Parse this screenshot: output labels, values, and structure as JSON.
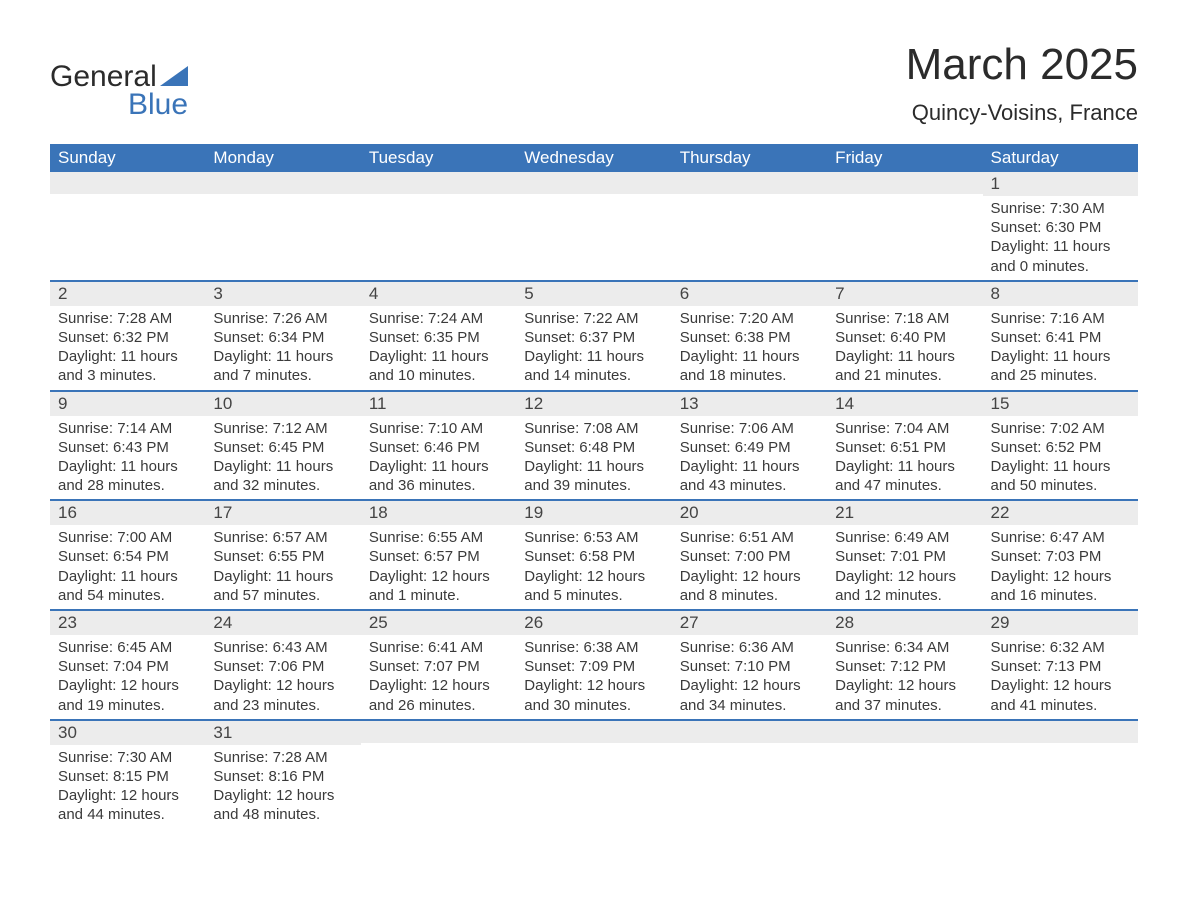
{
  "brand": {
    "first": "General",
    "second": "Blue",
    "second_color": "#3a74b8"
  },
  "title": "March 2025",
  "subtitle": "Quincy-Voisins, France",
  "colors": {
    "header_bg": "#3a74b8",
    "header_text": "#ffffff",
    "row_stripe": "#ececec",
    "page_bg": "#ffffff",
    "text": "#3a3a3a",
    "border": "#3a74b8"
  },
  "day_headers": [
    "Sunday",
    "Monday",
    "Tuesday",
    "Wednesday",
    "Thursday",
    "Friday",
    "Saturday"
  ],
  "weeks": [
    [
      {},
      {},
      {},
      {},
      {},
      {},
      {
        "n": "1",
        "sunrise": "Sunrise: 7:30 AM",
        "sunset": "Sunset: 6:30 PM",
        "d1": "Daylight: 11 hours",
        "d2": "and 0 minutes."
      }
    ],
    [
      {
        "n": "2",
        "sunrise": "Sunrise: 7:28 AM",
        "sunset": "Sunset: 6:32 PM",
        "d1": "Daylight: 11 hours",
        "d2": "and 3 minutes."
      },
      {
        "n": "3",
        "sunrise": "Sunrise: 7:26 AM",
        "sunset": "Sunset: 6:34 PM",
        "d1": "Daylight: 11 hours",
        "d2": "and 7 minutes."
      },
      {
        "n": "4",
        "sunrise": "Sunrise: 7:24 AM",
        "sunset": "Sunset: 6:35 PM",
        "d1": "Daylight: 11 hours",
        "d2": "and 10 minutes."
      },
      {
        "n": "5",
        "sunrise": "Sunrise: 7:22 AM",
        "sunset": "Sunset: 6:37 PM",
        "d1": "Daylight: 11 hours",
        "d2": "and 14 minutes."
      },
      {
        "n": "6",
        "sunrise": "Sunrise: 7:20 AM",
        "sunset": "Sunset: 6:38 PM",
        "d1": "Daylight: 11 hours",
        "d2": "and 18 minutes."
      },
      {
        "n": "7",
        "sunrise": "Sunrise: 7:18 AM",
        "sunset": "Sunset: 6:40 PM",
        "d1": "Daylight: 11 hours",
        "d2": "and 21 minutes."
      },
      {
        "n": "8",
        "sunrise": "Sunrise: 7:16 AM",
        "sunset": "Sunset: 6:41 PM",
        "d1": "Daylight: 11 hours",
        "d2": "and 25 minutes."
      }
    ],
    [
      {
        "n": "9",
        "sunrise": "Sunrise: 7:14 AM",
        "sunset": "Sunset: 6:43 PM",
        "d1": "Daylight: 11 hours",
        "d2": "and 28 minutes."
      },
      {
        "n": "10",
        "sunrise": "Sunrise: 7:12 AM",
        "sunset": "Sunset: 6:45 PM",
        "d1": "Daylight: 11 hours",
        "d2": "and 32 minutes."
      },
      {
        "n": "11",
        "sunrise": "Sunrise: 7:10 AM",
        "sunset": "Sunset: 6:46 PM",
        "d1": "Daylight: 11 hours",
        "d2": "and 36 minutes."
      },
      {
        "n": "12",
        "sunrise": "Sunrise: 7:08 AM",
        "sunset": "Sunset: 6:48 PM",
        "d1": "Daylight: 11 hours",
        "d2": "and 39 minutes."
      },
      {
        "n": "13",
        "sunrise": "Sunrise: 7:06 AM",
        "sunset": "Sunset: 6:49 PM",
        "d1": "Daylight: 11 hours",
        "d2": "and 43 minutes."
      },
      {
        "n": "14",
        "sunrise": "Sunrise: 7:04 AM",
        "sunset": "Sunset: 6:51 PM",
        "d1": "Daylight: 11 hours",
        "d2": "and 47 minutes."
      },
      {
        "n": "15",
        "sunrise": "Sunrise: 7:02 AM",
        "sunset": "Sunset: 6:52 PM",
        "d1": "Daylight: 11 hours",
        "d2": "and 50 minutes."
      }
    ],
    [
      {
        "n": "16",
        "sunrise": "Sunrise: 7:00 AM",
        "sunset": "Sunset: 6:54 PM",
        "d1": "Daylight: 11 hours",
        "d2": "and 54 minutes."
      },
      {
        "n": "17",
        "sunrise": "Sunrise: 6:57 AM",
        "sunset": "Sunset: 6:55 PM",
        "d1": "Daylight: 11 hours",
        "d2": "and 57 minutes."
      },
      {
        "n": "18",
        "sunrise": "Sunrise: 6:55 AM",
        "sunset": "Sunset: 6:57 PM",
        "d1": "Daylight: 12 hours",
        "d2": "and 1 minute."
      },
      {
        "n": "19",
        "sunrise": "Sunrise: 6:53 AM",
        "sunset": "Sunset: 6:58 PM",
        "d1": "Daylight: 12 hours",
        "d2": "and 5 minutes."
      },
      {
        "n": "20",
        "sunrise": "Sunrise: 6:51 AM",
        "sunset": "Sunset: 7:00 PM",
        "d1": "Daylight: 12 hours",
        "d2": "and 8 minutes."
      },
      {
        "n": "21",
        "sunrise": "Sunrise: 6:49 AM",
        "sunset": "Sunset: 7:01 PM",
        "d1": "Daylight: 12 hours",
        "d2": "and 12 minutes."
      },
      {
        "n": "22",
        "sunrise": "Sunrise: 6:47 AM",
        "sunset": "Sunset: 7:03 PM",
        "d1": "Daylight: 12 hours",
        "d2": "and 16 minutes."
      }
    ],
    [
      {
        "n": "23",
        "sunrise": "Sunrise: 6:45 AM",
        "sunset": "Sunset: 7:04 PM",
        "d1": "Daylight: 12 hours",
        "d2": "and 19 minutes."
      },
      {
        "n": "24",
        "sunrise": "Sunrise: 6:43 AM",
        "sunset": "Sunset: 7:06 PM",
        "d1": "Daylight: 12 hours",
        "d2": "and 23 minutes."
      },
      {
        "n": "25",
        "sunrise": "Sunrise: 6:41 AM",
        "sunset": "Sunset: 7:07 PM",
        "d1": "Daylight: 12 hours",
        "d2": "and 26 minutes."
      },
      {
        "n": "26",
        "sunrise": "Sunrise: 6:38 AM",
        "sunset": "Sunset: 7:09 PM",
        "d1": "Daylight: 12 hours",
        "d2": "and 30 minutes."
      },
      {
        "n": "27",
        "sunrise": "Sunrise: 6:36 AM",
        "sunset": "Sunset: 7:10 PM",
        "d1": "Daylight: 12 hours",
        "d2": "and 34 minutes."
      },
      {
        "n": "28",
        "sunrise": "Sunrise: 6:34 AM",
        "sunset": "Sunset: 7:12 PM",
        "d1": "Daylight: 12 hours",
        "d2": "and 37 minutes."
      },
      {
        "n": "29",
        "sunrise": "Sunrise: 6:32 AM",
        "sunset": "Sunset: 7:13 PM",
        "d1": "Daylight: 12 hours",
        "d2": "and 41 minutes."
      }
    ],
    [
      {
        "n": "30",
        "sunrise": "Sunrise: 7:30 AM",
        "sunset": "Sunset: 8:15 PM",
        "d1": "Daylight: 12 hours",
        "d2": "and 44 minutes."
      },
      {
        "n": "31",
        "sunrise": "Sunrise: 7:28 AM",
        "sunset": "Sunset: 8:16 PM",
        "d1": "Daylight: 12 hours",
        "d2": "and 48 minutes."
      },
      {},
      {},
      {},
      {},
      {}
    ]
  ]
}
